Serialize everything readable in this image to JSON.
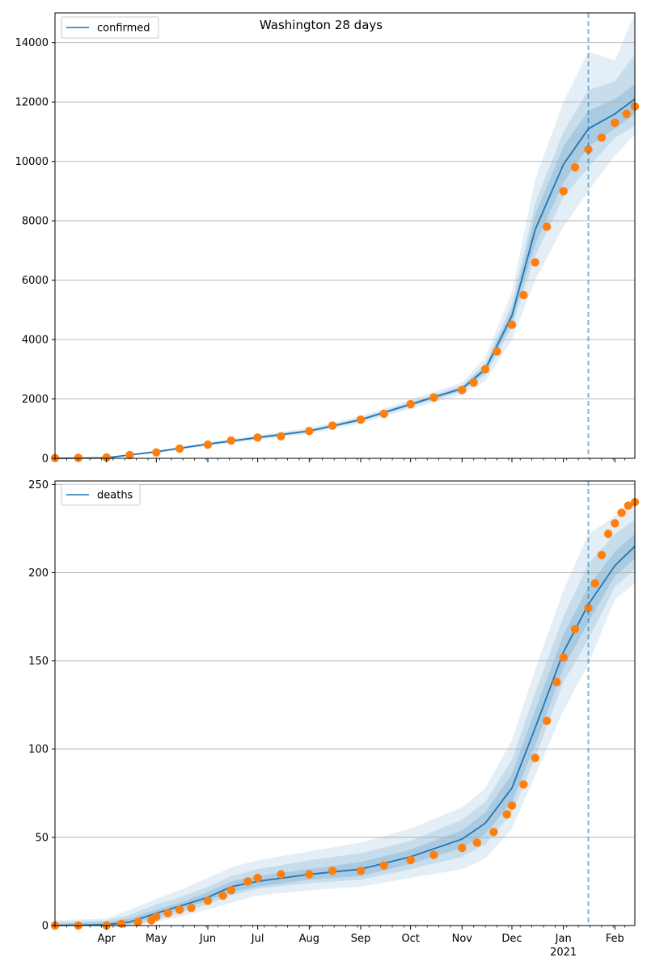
{
  "colors": {
    "model_line": "#1f77b4",
    "observed": "#ff7f0e",
    "band": "#1f77b4",
    "grid": "#b0b0b0",
    "forecast_marker": "#1f77b4"
  },
  "chart_data": [
    {
      "type": "line",
      "title": "Washington 28 days",
      "legend": [
        "confirmed"
      ],
      "legend_position": "top-left",
      "grid": "horizontal",
      "ylim": [
        0,
        15000
      ],
      "y_ticks": [
        "0",
        "2000",
        "4000",
        "6000",
        "8000",
        "10000",
        "12000",
        "14000"
      ],
      "x_range": [
        "2020-03-01",
        "2021-02-13"
      ],
      "forecast_start": "2021-01-16",
      "model": {
        "x": [
          "2020-03-01",
          "2020-04-01",
          "2020-05-01",
          "2020-06-01",
          "2020-07-01",
          "2020-08-01",
          "2020-09-01",
          "2020-10-01",
          "2020-11-01",
          "2020-11-15",
          "2020-12-01",
          "2020-12-15",
          "2021-01-01",
          "2021-01-16",
          "2021-02-01",
          "2021-02-13"
        ],
        "y": [
          0,
          20,
          220,
          480,
          700,
          920,
          1300,
          1820,
          2350,
          3000,
          4800,
          7700,
          9900,
          11100,
          11600,
          12100
        ]
      },
      "bands": [
        {
          "upper": [
            0,
            30,
            260,
            540,
            780,
            1020,
            1420,
            1980,
            2560,
            3400,
            5600,
            9400,
            12000,
            13700,
            13400,
            15000
          ],
          "lower": [
            0,
            10,
            180,
            420,
            620,
            820,
            1180,
            1660,
            2140,
            2600,
            4000,
            6000,
            7800,
            9000,
            10200,
            10900
          ]
        },
        {
          "upper": [
            0,
            25,
            240,
            510,
            740,
            970,
            1360,
            1900,
            2450,
            3200,
            5200,
            8600,
            11000,
            12400,
            12700,
            13600
          ],
          "lower": [
            0,
            15,
            200,
            450,
            660,
            870,
            1240,
            1740,
            2250,
            2800,
            4400,
            6800,
            8800,
            9800,
            10800,
            11200
          ]
        },
        {
          "upper": [
            0,
            22,
            230,
            495,
            720,
            945,
            1330,
            1860,
            2400,
            3100,
            5000,
            8200,
            10500,
            11700,
            12100,
            12600
          ],
          "lower": [
            0,
            18,
            210,
            465,
            680,
            895,
            1270,
            1780,
            2300,
            2900,
            4600,
            7200,
            9300,
            10500,
            11100,
            11600
          ]
        }
      ],
      "observed": {
        "x": [
          "2020-03-01",
          "2020-03-15",
          "2020-04-01",
          "2020-04-15",
          "2020-05-01",
          "2020-05-15",
          "2020-06-01",
          "2020-06-15",
          "2020-07-01",
          "2020-07-15",
          "2020-08-01",
          "2020-08-15",
          "2020-09-01",
          "2020-09-15",
          "2020-10-01",
          "2020-10-15",
          "2020-11-01",
          "2020-11-08",
          "2020-11-15",
          "2020-11-22",
          "2020-12-01",
          "2020-12-08",
          "2020-12-15",
          "2020-12-22",
          "2021-01-01",
          "2021-01-08",
          "2021-01-16",
          "2021-01-24",
          "2021-02-01",
          "2021-02-08",
          "2021-02-13"
        ],
        "y": [
          10,
          15,
          30,
          110,
          200,
          330,
          460,
          600,
          700,
          740,
          920,
          1100,
          1300,
          1500,
          1820,
          2050,
          2300,
          2550,
          3000,
          3600,
          4500,
          5500,
          6600,
          7800,
          9000,
          9800,
          10400,
          10800,
          11300,
          11600,
          11850
        ]
      }
    },
    {
      "type": "line",
      "title": "",
      "legend": [
        "deaths"
      ],
      "legend_position": "top-left",
      "grid": "horizontal",
      "ylim": [
        0,
        252
      ],
      "y_ticks": [
        "0",
        "50",
        "100",
        "150",
        "200",
        "250"
      ],
      "x_range": [
        "2020-03-01",
        "2021-02-13"
      ],
      "forecast_start": "2021-01-16",
      "x_tick_labels": [
        {
          "date": "2020-04-01",
          "label": "Apr"
        },
        {
          "date": "2020-05-01",
          "label": "May"
        },
        {
          "date": "2020-06-01",
          "label": "Jun"
        },
        {
          "date": "2020-07-01",
          "label": "Jul"
        },
        {
          "date": "2020-08-01",
          "label": "Aug"
        },
        {
          "date": "2020-09-01",
          "label": "Sep"
        },
        {
          "date": "2020-10-01",
          "label": "Oct"
        },
        {
          "date": "2020-11-01",
          "label": "Nov"
        },
        {
          "date": "2020-12-01",
          "label": "Dec"
        },
        {
          "date": "2021-01-01",
          "label": "Jan"
        },
        {
          "date": "2021-02-01",
          "label": "Feb"
        }
      ],
      "year_label": {
        "date": "2021-01-01",
        "label": "2021"
      },
      "model": {
        "x": [
          "2020-03-01",
          "2020-04-01",
          "2020-04-15",
          "2020-05-01",
          "2020-05-15",
          "2020-06-01",
          "2020-06-15",
          "2020-07-01",
          "2020-08-01",
          "2020-09-01",
          "2020-10-01",
          "2020-11-01",
          "2020-11-15",
          "2020-12-01",
          "2020-12-15",
          "2021-01-01",
          "2021-01-16",
          "2021-02-01",
          "2021-02-13"
        ],
        "y": [
          0,
          0.5,
          2,
          7,
          11,
          16,
          22,
          25,
          29,
          32,
          39,
          49,
          58,
          78,
          112,
          155,
          182,
          204,
          215
        ]
      },
      "bands": [
        {
          "upper": [
            3,
            4,
            9,
            15,
            20,
            27,
            33,
            37,
            42,
            47,
            55,
            67,
            78,
            105,
            145,
            190,
            222,
            232,
            240
          ],
          "lower": [
            0,
            0,
            0,
            2,
            5,
            9,
            13,
            17,
            20,
            22,
            27,
            32,
            38,
            55,
            85,
            122,
            148,
            185,
            194
          ]
        },
        {
          "upper": [
            2,
            3,
            6,
            12,
            16,
            22,
            28,
            32,
            37,
            41,
            48,
            60,
            70,
            94,
            132,
            175,
            205,
            222,
            230
          ],
          "lower": [
            0,
            0,
            0,
            3,
            7,
            12,
            17,
            21,
            24,
            26,
            32,
            39,
            46,
            64,
            95,
            138,
            162,
            192,
            202
          ]
        },
        {
          "upper": [
            1,
            2,
            4,
            9,
            13,
            19,
            25,
            28,
            32,
            36,
            43,
            54,
            64,
            86,
            122,
            165,
            192,
            212,
            222
          ],
          "lower": [
            0,
            0,
            1,
            5,
            9,
            14,
            19,
            22,
            26,
            28,
            35,
            44,
            52,
            70,
            102,
            146,
            172,
            198,
            208
          ]
        }
      ],
      "observed": {
        "x": [
          "2020-03-01",
          "2020-03-15",
          "2020-04-01",
          "2020-04-10",
          "2020-04-20",
          "2020-04-28",
          "2020-05-01",
          "2020-05-08",
          "2020-05-15",
          "2020-05-22",
          "2020-06-01",
          "2020-06-10",
          "2020-06-15",
          "2020-06-25",
          "2020-07-01",
          "2020-07-15",
          "2020-08-01",
          "2020-08-15",
          "2020-09-01",
          "2020-09-15",
          "2020-10-01",
          "2020-10-15",
          "2020-11-01",
          "2020-11-10",
          "2020-11-20",
          "2020-11-28",
          "2020-12-01",
          "2020-12-08",
          "2020-12-15",
          "2020-12-22",
          "2020-12-28",
          "2021-01-01",
          "2021-01-08",
          "2021-01-16",
          "2021-01-20",
          "2021-01-24",
          "2021-01-28",
          "2021-02-01",
          "2021-02-05",
          "2021-02-09",
          "2021-02-13"
        ],
        "y": [
          0,
          0,
          0,
          1,
          2,
          3,
          5,
          7,
          9,
          10,
          14,
          17,
          20,
          25,
          27,
          29,
          29,
          31,
          31,
          34,
          37,
          40,
          44,
          47,
          53,
          63,
          68,
          80,
          95,
          116,
          138,
          152,
          168,
          180,
          194,
          210,
          222,
          228,
          234,
          238,
          240
        ]
      }
    }
  ]
}
